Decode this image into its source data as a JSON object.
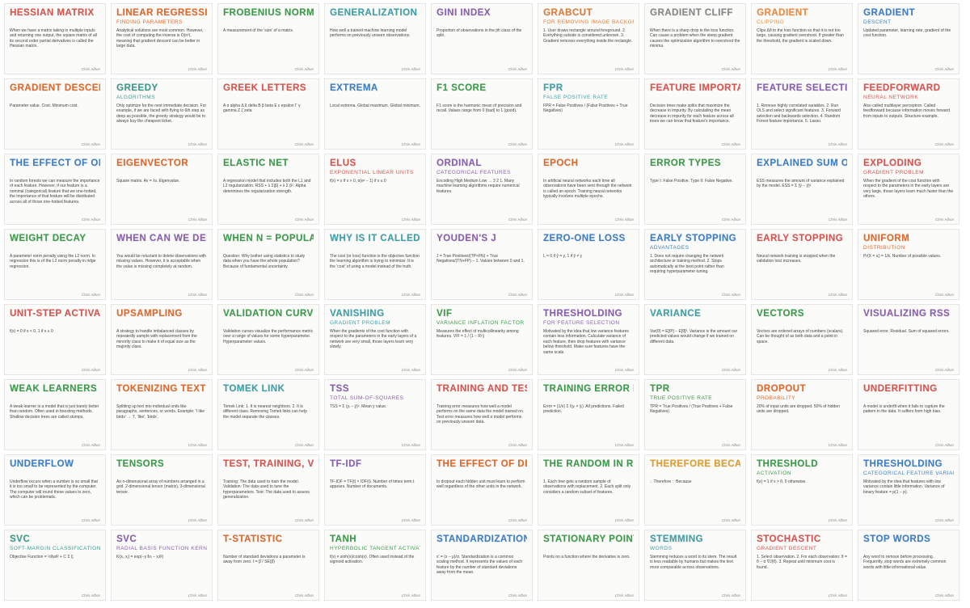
{
  "signature": "Chris Albon",
  "cards": [
    {
      "title": "Hessian Matrix",
      "subtitle": "",
      "color": "#d9534f",
      "body": "When we have a matrix taking in multiple inputs and returning one output, the square matrix of all its second order partial derivatives is called the Hessian matrix."
    },
    {
      "title": "Linear Regression",
      "subtitle": "Finding Parameters",
      "color": "#e0692a",
      "body": "Analytical solutions are most common. However, the cost of computing the inverse is O(n³), meaning that gradient descent can be better in large data."
    },
    {
      "title": "Frobenius Norm",
      "subtitle": "",
      "color": "#3a9b4a",
      "body": "A measurement of the 'size' of a matrix."
    },
    {
      "title": "Generalization",
      "subtitle": "",
      "color": "#3ea0a8",
      "body": "How well a trained machine learning model performs on previously unseen observations."
    },
    {
      "title": "Gini Index",
      "subtitle": "",
      "color": "#8a5fb0",
      "body": "Proportion of observations in the jth class of the split."
    },
    {
      "title": "Grabcut",
      "subtitle": "For Removing Image Backgrounds",
      "color": "#e07b39",
      "body": "1. User draws rectangle around foreground. 2. Everything outside is considered unknown. 3. Gradient removes everything inside the rectangle."
    },
    {
      "title": "Gradient Cliff",
      "subtitle": "",
      "color": "#888888",
      "body": "When there is a sharp drop in the loss function. Can cause a problem when the steep gradient causes the optimization algorithm to overshoot the minima."
    },
    {
      "title": "Gradient",
      "subtitle": "Clipping",
      "color": "#f08a3c",
      "body": "Clips Δθ to the loss function so that it is not too large, causing gradient overshoot. If greater than the threshold, the gradient is scaled down."
    },
    {
      "title": "Gradient",
      "subtitle": "Descent",
      "color": "#3a7fc8",
      "body": "Updated parameter, learning rate, gradient of the cost function."
    },
    {
      "title": "Gradient Descent",
      "subtitle": "",
      "color": "#e0692a",
      "body": "Parameter value. Cost. Minimum cost."
    },
    {
      "title": "Greedy",
      "subtitle": "Algorithms",
      "color": "#3a9b8f",
      "body": "Only optimize for the next immediate decision. For example, if we are faced with flying to 6th step as deep as possible, the greedy strategy would be to always buy the cheapest ticket."
    },
    {
      "title": "Greek Letters",
      "subtitle": "",
      "color": "#d9534f",
      "body": "A α alpha   Δ δ delta   B β beta   E ε epsilon   Γ γ gamma   Z ζ zeta"
    },
    {
      "title": "Extrema",
      "subtitle": "",
      "color": "#3a7fc8",
      "body": "Local extrema. Global maximum. Global minimum."
    },
    {
      "title": "F1 Score",
      "subtitle": "",
      "color": "#3a9b4a",
      "body": "F1 score is the harmonic mean of precision and recall. Values range from 0 (bad) to 1 (good)."
    },
    {
      "title": "FPR",
      "subtitle": "False Positive Rate",
      "color": "#3ea0a8",
      "body": "FPR = False Positives / (False Positives + True Negatives)"
    },
    {
      "title": "Feature Importance",
      "subtitle": "",
      "color": "#d9534f",
      "body": "Decision trees make splits that maximize the decrease in impurity. By calculating the mean decrease in impurity for each feature across all trees we can know that feature's importance."
    },
    {
      "title": "Feature Selection Strategies",
      "subtitle": "",
      "color": "#8a5fb0",
      "body": "1. Remove highly correlated variables. 2. Run OLS and select significant features. 3. Forward selection and backwards selection. 4. Random Forest feature importance. 5. Lasso."
    },
    {
      "title": "Feedforward",
      "subtitle": "Neural Network",
      "color": "#d9534f",
      "body": "Also called multilayer perceptron. Called feedforward because information moves forward from inputs to outputs. Structure example."
    },
    {
      "title": "The Effect of One-Hot on Feature Importance",
      "subtitle": "",
      "color": "#3a7fc8",
      "body": "In random forests we can measure the importance of each feature. However, if our feature is a nominal (categorical) feature that we one-hotted, the importance of that feature will be distributed across all of those one-hotted features."
    },
    {
      "title": "Eigenvector",
      "subtitle": "",
      "color": "#e0692a",
      "body": "Square matrix. Av = λv. Eigenvalue."
    },
    {
      "title": "Elastic Net",
      "subtitle": "",
      "color": "#3a9b4a",
      "body": "A regression model that includes both the L1 and L2 regularization. RSS + λ Σ|β| + λ Σ β². Alpha determines the regularization strength."
    },
    {
      "title": "ELUs",
      "subtitle": "Exponential Linear Units",
      "color": "#d9534f",
      "body": "f(x) = x if x > 0, α(eˣ − 1) if x ≤ 0"
    },
    {
      "title": "Ordinal",
      "subtitle": "Categorical Features",
      "color": "#8a5fb0",
      "body": "Encoding High Medium Low → 3 2 1. Many machine learning algorithms require numerical features."
    },
    {
      "title": "Epoch",
      "subtitle": "",
      "color": "#e0692a",
      "body": "In artificial neural networks each time all observations have been sent through the network is called an epoch. Training neural networks typically involves multiple epochs."
    },
    {
      "title": "Error Types",
      "subtitle": "",
      "color": "#3a9b4a",
      "body": "Type I: False Positive. Type II: False Negative."
    },
    {
      "title": "Explained Sum of Squares",
      "subtitle": "",
      "color": "#3a7fc8",
      "body": "ESS measures the amount of variance explained by the model. ESS = Σ (ŷ − ȳ)²"
    },
    {
      "title": "Exploding",
      "subtitle": "Gradient Problem",
      "color": "#d9534f",
      "body": "When the gradient of the cost function with respect to the parameters in the early layers are very large, those layers learn much faster than the others."
    },
    {
      "title": "Weight Decay",
      "subtitle": "",
      "color": "#3a9b4a",
      "body": "A parameter norm penalty using the L2 norm. In regression this is of the L2 norm penalty in ridge regression."
    },
    {
      "title": "When Can We Delete Observations With Missing Values",
      "subtitle": "",
      "color": "#8a5fb0",
      "body": "You would be reluctant to delete observations with missing values. However, it is acceptable when the value is missing completely at random."
    },
    {
      "title": "When N = Population",
      "subtitle": "",
      "color": "#3a9b4a",
      "body": "Question: Why bother using statistics to study data when you have the whole population? Because of fundamental uncertainty."
    },
    {
      "title": "Why Is It Called A Cost Function",
      "subtitle": "",
      "color": "#3ea0a8",
      "body": "The cost (or loss) function is the objective function the learning algorithm is trying to minimize. It is the 'cost' of using a model instead of the truth."
    },
    {
      "title": "Youden's J",
      "subtitle": "",
      "color": "#8a5fb0",
      "body": "J = True Positives/(TP+FN) + True Negatives/(TN+FP) − 1. Values between 0 and 1."
    },
    {
      "title": "Zero-One Loss",
      "subtitle": "",
      "color": "#3a7fc8",
      "body": "L = 0 if ŷ = y, 1 if ŷ ≠ y"
    },
    {
      "title": "Early Stopping",
      "subtitle": "Advantages",
      "color": "#3a7fc8",
      "body": "1. Does not require changing the network architecture or training method. 2. Stops automatically at the best point rather than requiring hyperparameter tuning."
    },
    {
      "title": "Early Stopping",
      "subtitle": "",
      "color": "#d9534f",
      "body": "Neural network training is stopped when the validation loss increases."
    },
    {
      "title": "Uniform",
      "subtitle": "Distribution",
      "color": "#e0692a",
      "body": "Pr(X = xᵢ) = 1/k. Number of possible values."
    },
    {
      "title": "Unit-Step Activation Function",
      "subtitle": "",
      "color": "#d9534f",
      "body": "f(x) = 0 if x < 0, 1 if x ≥ 0"
    },
    {
      "title": "Upsampling",
      "subtitle": "",
      "color": "#e0692a",
      "body": "A strategy to handle imbalanced classes by repeatedly sample with replacement from the minority class to make it of equal size as the majority class."
    },
    {
      "title": "Validation Curve",
      "subtitle": "",
      "color": "#3a9b4a",
      "body": "Validation curves visualize the performance metric over a range of values for some hyperparameter. Hyperparameter values."
    },
    {
      "title": "Vanishing",
      "subtitle": "Gradient Problem",
      "color": "#3ea0a8",
      "body": "When the gradients of the cost function with respect to the parameters in the early layers of a network are very small, those layers learn very slowly."
    },
    {
      "title": "VIF",
      "subtitle": "Variance Inflation Factor",
      "color": "#3a9b4a",
      "body": "Measures the effect of multicollinearity among features. VIF = 1 / (1 − R²ⱼ)"
    },
    {
      "title": "Thresholding",
      "subtitle": "For Feature Selection",
      "color": "#8a5fb0",
      "body": "Motivated by the idea that low variance features contain less information. Calculate variance of each feature, then drop features with variance below threshold. Make sure features have the same scale."
    },
    {
      "title": "Variance",
      "subtitle": "",
      "color": "#3ea0a8",
      "body": "Var(θ̂) = E[θ̂²] − E[θ̂]². Variance is the amount our predicted values would change if we trained on different data."
    },
    {
      "title": "Vectors",
      "subtitle": "",
      "color": "#3a9b4a",
      "body": "Vectors are ordered arrays of numbers (scalars). Can be thought of as both data and a point in space."
    },
    {
      "title": "Visualizing RSS",
      "subtitle": "",
      "color": "#8a5fb0",
      "body": "Squared error. Residual. Sum of squared errors."
    },
    {
      "title": "Weak Learners",
      "subtitle": "",
      "color": "#3a9b4a",
      "body": "A weak learner is a model that is just barely better than random. Often used in boosting methods. Shallow decision trees are called stumps."
    },
    {
      "title": "Tokenizing Text",
      "subtitle": "",
      "color": "#e0692a",
      "body": "Splitting up text into individual units like paragraphs, sentences, or words. Example: 'I like birds' → 'I', 'like', 'birds'."
    },
    {
      "title": "Tomek Link",
      "subtitle": "",
      "color": "#3ea0a8",
      "body": "Tomek Link: 1. It is nearest neighbors. 2. It is different class. Removing Tomek links can help the model separate the classes."
    },
    {
      "title": "TSS",
      "subtitle": "Total Sum-of-Squares",
      "color": "#8a5fb0",
      "body": "TSS = Σ (yᵢ − ȳ)². Mean y value."
    },
    {
      "title": "Training and Test Error",
      "subtitle": "",
      "color": "#d9534f",
      "body": "Training error measures how well a model performs on the same data the model trained on. Test error measures how well a model performs on previously unseen data."
    },
    {
      "title": "Training Error Rate",
      "subtitle": "",
      "color": "#3a9b4a",
      "body": "Error = (1/n) Σ I(yᵢ ≠ ŷᵢ). All predictions. Failed prediction."
    },
    {
      "title": "TPR",
      "subtitle": "True Positive Rate",
      "color": "#3a9b4a",
      "body": "TPR = True Positives / (True Positives + False Negatives)"
    },
    {
      "title": "Dropout",
      "subtitle": "Probability",
      "color": "#e0692a",
      "body": "20% of input units are dropped. 50% of hidden units are dropped."
    },
    {
      "title": "Underfitting",
      "subtitle": "",
      "color": "#d9534f",
      "body": "A model is underfit when it fails to capture the pattern in the data. It suffers from high bias."
    },
    {
      "title": "Underflow",
      "subtitle": "",
      "color": "#3a7fc8",
      "body": "Underflow occurs when a number is so small that it is too small to be represented by the computer. The computer will round these values to zero, which can be problematic."
    },
    {
      "title": "Tensors",
      "subtitle": "",
      "color": "#3a9b4a",
      "body": "An n-dimensional array of numbers arranged in a grid. 2-dimensional tensor (matrix), 3-dimensional tensor."
    },
    {
      "title": "Test, Training, Validation Sets",
      "subtitle": "",
      "color": "#d9534f",
      "body": "Training: The data used to train the model. Validation: The data used to tune the hyperparameters. Test: The data used to assess generalization."
    },
    {
      "title": "TF-IDF",
      "subtitle": "",
      "color": "#8a5fb0",
      "body": "TF-IDF = TF(t) × IDF(t). Number of times term t appears. Number of documents."
    },
    {
      "title": "The Effect of Dropout on Hidden Units",
      "subtitle": "",
      "color": "#e0692a",
      "body": "In dropout each hidden unit must learn to perform well regardless of the other units in the network."
    },
    {
      "title": "The Random in Random Forest",
      "subtitle": "",
      "color": "#3a9b4a",
      "body": "1. Each tree gets a random sample of observations with replacement. 2. Each split only considers a random subset of features."
    },
    {
      "title": "Therefore Because",
      "subtitle": "",
      "color": "#e0a030",
      "body": "∴ Therefore   ∵ Because"
    },
    {
      "title": "Threshold",
      "subtitle": "Activation",
      "color": "#3a9b4a",
      "body": "f(x) = 1 if x > θ, 0 otherwise."
    },
    {
      "title": "Thresholding",
      "subtitle": "Categorical Feature Variance",
      "color": "#3a7fc8",
      "body": "Motivated by the idea that features with low variance contain little information. Variance of binary feature = p(1 − p)."
    },
    {
      "title": "SVC",
      "subtitle": "Soft-Margin Classification",
      "color": "#3a9b8f",
      "body": "Objective Function = ½‖w‖² + C Σ ξᵢ"
    },
    {
      "title": "SVC",
      "subtitle": "Radial Basis Function Kernel",
      "color": "#8a5fb0",
      "body": "K(xᵢ, xⱼ) = exp(−γ ‖xᵢ − xⱼ‖²)"
    },
    {
      "title": "T-Statistic",
      "subtitle": "",
      "color": "#e0692a",
      "body": "Number of standard deviations a parameter is away from zero. t = β̂ / SE(β̂)"
    },
    {
      "title": "Tanh",
      "subtitle": "Hyperbolic Tangent Activation Function",
      "color": "#3a9b4a",
      "body": "f(x) = sinh(x)/cosh(x). Often used instead of the sigmoid activation."
    },
    {
      "title": "Standardization",
      "subtitle": "",
      "color": "#3a7fc8",
      "body": "x' = (x − μ)/σ. Standardization is a common scaling method. It represents the values of each feature by the number of standard deviations away from the mean."
    },
    {
      "title": "Stationary Points",
      "subtitle": "",
      "color": "#3a9b4a",
      "body": "Points on a function where the derivative is zero."
    },
    {
      "title": "Stemming",
      "subtitle": "Words",
      "color": "#3ea0a8",
      "body": "Stemming reduces a word to its stem. The result is less readable by humans but makes the text more comparable across observations."
    },
    {
      "title": "Stochastic",
      "subtitle": "Gradient Descent",
      "color": "#d9534f",
      "body": "1. Select observation. 2. For each observation: θ = θ − α ∇J(θ). 3. Repeat until minimum cost is found."
    },
    {
      "title": "Stop Words",
      "subtitle": "",
      "color": "#3a7fc8",
      "body": "Any word to remove before processing. Frequently, stop words are extremely common words with little informational value."
    }
  ]
}
